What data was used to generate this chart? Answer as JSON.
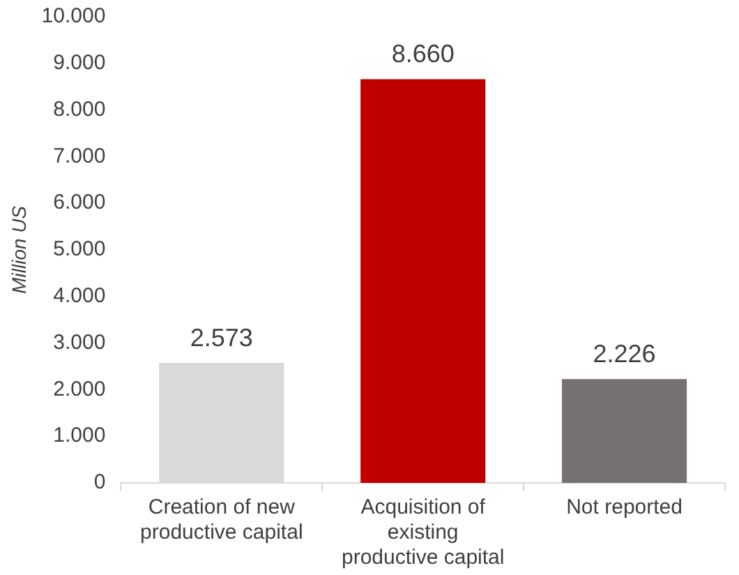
{
  "chart_data": {
    "type": "bar",
    "ylabel": "Million US",
    "categories": [
      "Creation of new productive capital",
      "Acquisition of existing productive capital",
      "Not reported"
    ],
    "values": [
      2573,
      8660,
      2226
    ],
    "colors": [
      "#d9d9d9",
      "#c00000",
      "#767171"
    ],
    "value_labels": [
      "2.573",
      "8.660",
      "2.226"
    ],
    "ylim": [
      0,
      10000
    ],
    "yticks": [
      {
        "value": 0,
        "label": "0"
      },
      {
        "value": 1000,
        "label": "1.000"
      },
      {
        "value": 2000,
        "label": "2.000"
      },
      {
        "value": 3000,
        "label": "3.000"
      },
      {
        "value": 4000,
        "label": "4.000"
      },
      {
        "value": 5000,
        "label": "5.000"
      },
      {
        "value": 6000,
        "label": "6.000"
      },
      {
        "value": 7000,
        "label": "7.000"
      },
      {
        "value": 8000,
        "label": "8.000"
      },
      {
        "value": 9000,
        "label": "9.000"
      },
      {
        "value": 10000,
        "label": "10.000"
      }
    ],
    "grid": false,
    "legend": false
  }
}
